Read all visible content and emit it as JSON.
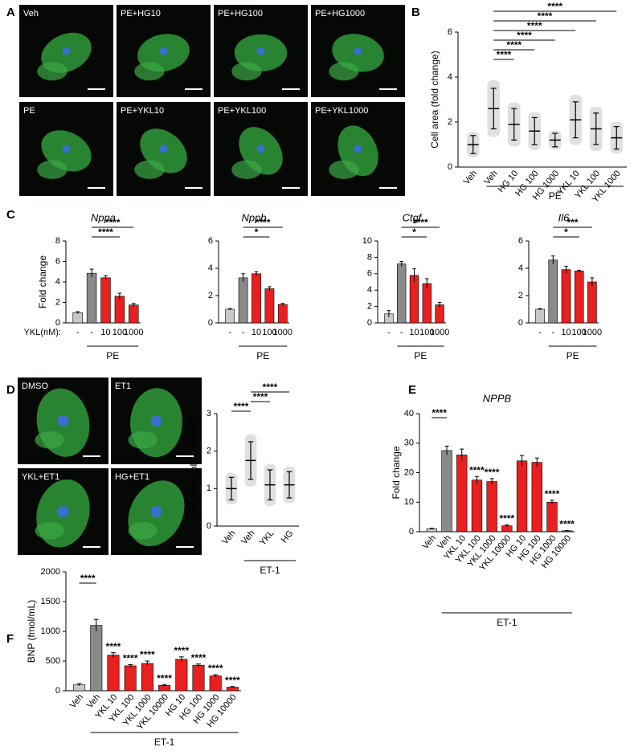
{
  "figure": {
    "panel_labels": [
      "A",
      "B",
      "C",
      "D",
      "E",
      "F"
    ],
    "micrograph_labels": [
      "Veh",
      "PE+HG10",
      "PE+HG100",
      "PE+HG1000",
      "PE",
      "PE+YKL10",
      "PE+YKL100",
      "PE+YKL1000",
      "DMSO",
      "ET1",
      "YKL+ET1",
      "HG+ET1"
    ]
  },
  "chart_data": [
    {
      "type": "dot",
      "ylabel": "Cell area (fold change)",
      "color": "#a6a6a6",
      "categories": [
        "Veh",
        "Veh",
        "HG 10",
        "HG 100",
        "HG 1000",
        "YKL 10",
        "YKL 100",
        "YKL 1000"
      ],
      "values": [
        1.0,
        2.6,
        1.9,
        1.6,
        1.2,
        2.1,
        1.7,
        1.3
      ],
      "errors": [
        0.4,
        0.9,
        0.7,
        0.6,
        0.3,
        0.8,
        0.7,
        0.5
      ],
      "ylim": [
        0,
        6
      ],
      "yticks": [
        0,
        2,
        4,
        6
      ],
      "group": {
        "label": "PE",
        "from": 1,
        "to": 7
      },
      "brackets": [
        {
          "from": 1,
          "to": 7,
          "label": "****"
        },
        {
          "from": 1,
          "to": 6,
          "label": "****"
        },
        {
          "from": 1,
          "to": 5,
          "label": "****"
        },
        {
          "from": 1,
          "to": 4,
          "label": "****"
        },
        {
          "from": 1,
          "to": 3,
          "label": "****"
        },
        {
          "from": 1,
          "to": 2,
          "label": "****"
        }
      ]
    },
    {
      "type": "bar",
      "title": "Nppa",
      "ylabel": "Fold change",
      "x_row_label": "YKL(nM):",
      "categories": [
        "-",
        "-",
        "10",
        "100",
        "1000"
      ],
      "colors": [
        "#c8c8c8",
        "#8a8a8a",
        "#e8201f",
        "#e8201f",
        "#e8201f"
      ],
      "values": [
        1.0,
        4.85,
        4.4,
        2.6,
        1.75
      ],
      "errors": [
        0.1,
        0.4,
        0.2,
        0.3,
        0.15
      ],
      "ylim": [
        0,
        8
      ],
      "yticks": [
        0,
        2,
        4,
        6,
        8
      ],
      "group": {
        "label": "PE",
        "from": 1,
        "to": 4
      },
      "brackets": [
        {
          "from": 1,
          "to": 4,
          "label": "****"
        },
        {
          "from": 1,
          "to": 3,
          "label": "****"
        }
      ]
    },
    {
      "type": "bar",
      "title": "Nppb",
      "categories": [
        "-",
        "-",
        "10",
        "100",
        "1000"
      ],
      "colors": [
        "#c8c8c8",
        "#8a8a8a",
        "#e8201f",
        "#e8201f",
        "#e8201f"
      ],
      "values": [
        1.0,
        3.3,
        3.6,
        2.5,
        1.35
      ],
      "errors": [
        0.05,
        0.3,
        0.15,
        0.15,
        0.08
      ],
      "ylim": [
        0,
        6
      ],
      "yticks": [
        0,
        2,
        4,
        6
      ],
      "group": {
        "label": "PE",
        "from": 1,
        "to": 4
      },
      "brackets": [
        {
          "from": 1,
          "to": 4,
          "label": "****"
        },
        {
          "from": 1,
          "to": 3,
          "label": "*"
        }
      ]
    },
    {
      "type": "bar",
      "title": "Ctgf",
      "categories": [
        "-",
        "-",
        "10",
        "100",
        "1000"
      ],
      "colors": [
        "#c8c8c8",
        "#8a8a8a",
        "#e8201f",
        "#e8201f",
        "#e8201f"
      ],
      "values": [
        1.1,
        7.2,
        5.8,
        4.8,
        2.2
      ],
      "errors": [
        0.4,
        0.3,
        0.8,
        0.6,
        0.3
      ],
      "ylim": [
        0,
        10
      ],
      "yticks": [
        0,
        2,
        4,
        6,
        8,
        10
      ],
      "group": {
        "label": "PE",
        "from": 1,
        "to": 4
      },
      "brackets": [
        {
          "from": 1,
          "to": 4,
          "label": "****"
        },
        {
          "from": 1,
          "to": 3,
          "label": "*"
        }
      ]
    },
    {
      "type": "bar",
      "title": "Il6",
      "categories": [
        "-",
        "-",
        "10",
        "100",
        "1000"
      ],
      "colors": [
        "#c8c8c8",
        "#8a8a8a",
        "#e8201f",
        "#e8201f",
        "#e8201f"
      ],
      "values": [
        1.0,
        4.6,
        3.9,
        3.8,
        3.0
      ],
      "errors": [
        0.05,
        0.3,
        0.25,
        0.05,
        0.3
      ],
      "ylim": [
        0,
        6
      ],
      "yticks": [
        0,
        2,
        4,
        6
      ],
      "group": {
        "label": "PE",
        "from": 1,
        "to": 4
      },
      "brackets": [
        {
          "from": 1,
          "to": 4,
          "label": "***"
        },
        {
          "from": 1,
          "to": 3,
          "label": "*"
        }
      ]
    },
    {
      "type": "dot",
      "ylabel": "Cell area (fold change)",
      "color": "#a6a6a6",
      "categories": [
        "Veh",
        "Veh",
        "YKL",
        "HG"
      ],
      "values": [
        1.0,
        1.75,
        1.1,
        1.1
      ],
      "errors": [
        0.3,
        0.5,
        0.4,
        0.35
      ],
      "ylim": [
        0,
        3
      ],
      "yticks": [
        0,
        1,
        2,
        3
      ],
      "group": {
        "label": "ET-1",
        "from": 1,
        "to": 3
      },
      "brackets": [
        {
          "from": 1,
          "to": 3,
          "label": "****"
        },
        {
          "from": 1,
          "to": 2,
          "label": "****"
        },
        {
          "from": 0,
          "to": 1,
          "label": "****"
        }
      ]
    },
    {
      "type": "bar",
      "title": "NPPB",
      "ylabel": "Fold change",
      "categories": [
        "Veh",
        "Veh",
        "YKL 10",
        "YKL 100",
        "YKL 1000",
        "YKL 10000",
        "HG 10",
        "HG 100",
        "HG 1000",
        "HG 10000"
      ],
      "colors": [
        "#c8c8c8",
        "#8a8a8a",
        "#e8201f",
        "#e8201f",
        "#e8201f",
        "#e8201f",
        "#e8201f",
        "#e8201f",
        "#e8201f",
        "#e8201f"
      ],
      "values": [
        1.0,
        27.5,
        26,
        17.5,
        17,
        2,
        24,
        23.5,
        10,
        0.3
      ],
      "errors": [
        0.2,
        1.5,
        2,
        1.2,
        1,
        0.3,
        1.8,
        1.5,
        0.7,
        0.1
      ],
      "stars": [
        null,
        null,
        null,
        "****",
        "****",
        "****",
        null,
        null,
        "****",
        "****"
      ],
      "ylim": [
        0,
        40
      ],
      "yticks": [
        0,
        10,
        20,
        30,
        40
      ],
      "group": {
        "label": "ET-1",
        "from": 1,
        "to": 9
      },
      "brackets": [
        {
          "from": 0,
          "to": 1,
          "label": "****"
        }
      ]
    },
    {
      "type": "bar",
      "ylabel": "BNP (fmol/mL)",
      "categories": [
        "Veh",
        "Veh",
        "YKL 10",
        "YKL 100",
        "YKL 1000",
        "YKL 10000",
        "HG 10",
        "HG 100",
        "HG 1000",
        "HG 10000"
      ],
      "colors": [
        "#c8c8c8",
        "#8a8a8a",
        "#e8201f",
        "#e8201f",
        "#e8201f",
        "#e8201f",
        "#e8201f",
        "#e8201f",
        "#e8201f",
        "#e8201f"
      ],
      "values": [
        100,
        1100,
        600,
        420,
        460,
        90,
        530,
        430,
        250,
        60
      ],
      "errors": [
        20,
        100,
        40,
        20,
        40,
        15,
        40,
        20,
        20,
        10
      ],
      "stars": [
        null,
        null,
        "****",
        "****",
        "****",
        "****",
        "****",
        "****",
        "****",
        "****"
      ],
      "ylim": [
        0,
        2000
      ],
      "yticks": [
        0,
        500,
        1000,
        1500,
        2000
      ],
      "group": {
        "label": "ET-1",
        "from": 1,
        "to": 9
      },
      "brackets": [
        {
          "from": 0,
          "to": 1,
          "label": "****"
        }
      ]
    }
  ]
}
